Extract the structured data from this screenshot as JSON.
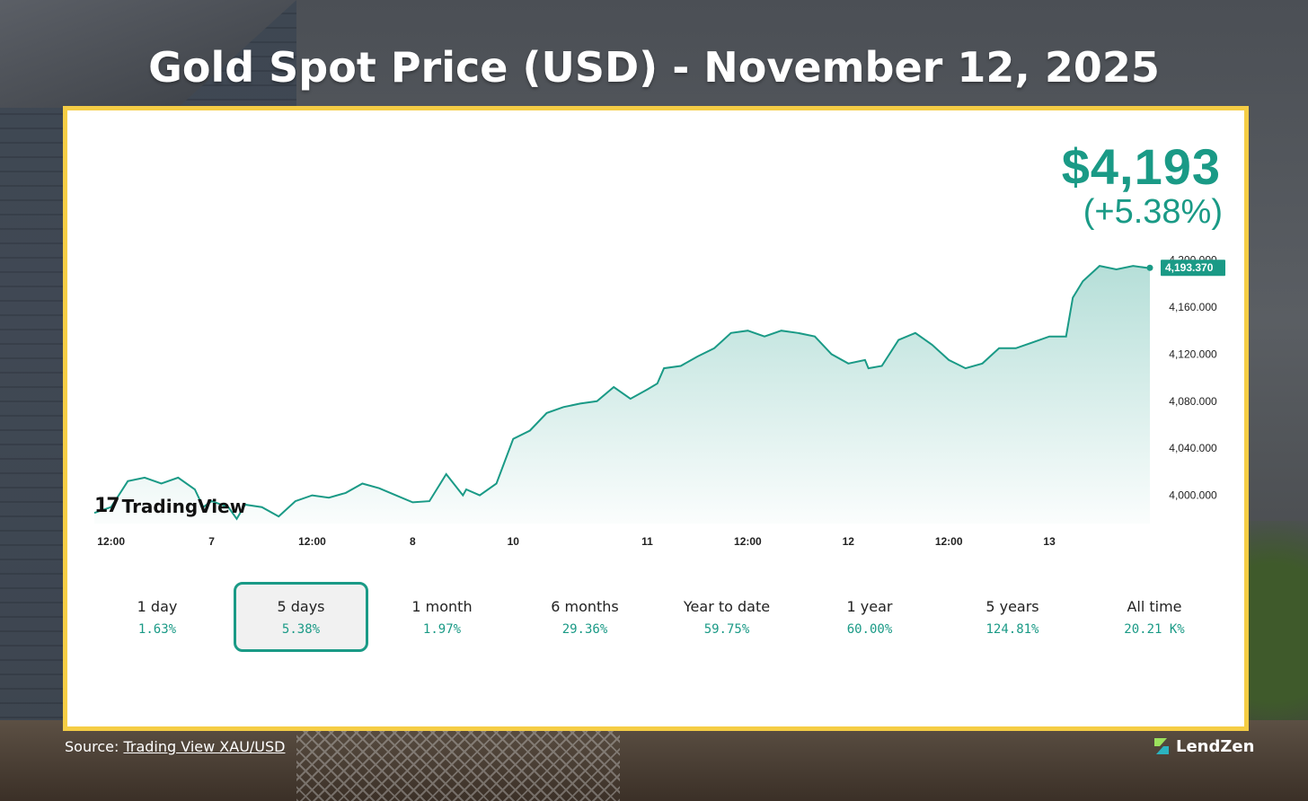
{
  "title": "Gold Spot Price (USD) - November 12, 2025",
  "headline": {
    "price": "$4,193",
    "change": "(+5.38%)"
  },
  "colors": {
    "accent": "#1a9a86",
    "frame": "#f5cd45",
    "title": "#ffffff"
  },
  "watermark": {
    "mark": "17",
    "text": "TradingView"
  },
  "periods": [
    {
      "label": "1 day",
      "value": "1.63%",
      "active": false
    },
    {
      "label": "5 days",
      "value": "5.38%",
      "active": true
    },
    {
      "label": "1 month",
      "value": "1.97%",
      "active": false
    },
    {
      "label": "6 months",
      "value": "29.36%",
      "active": false
    },
    {
      "label": "Year to date",
      "value": "59.75%",
      "active": false
    },
    {
      "label": "1 year",
      "value": "60.00%",
      "active": false
    },
    {
      "label": "5 years",
      "value": "124.81%",
      "active": false
    },
    {
      "label": "All time",
      "value": "20.21 K%",
      "active": false
    }
  ],
  "footer": {
    "source_prefix": "Source:",
    "source_link": "Trading View XAU/USD",
    "brand": "LendZen"
  },
  "chart_data": {
    "type": "area",
    "title": "",
    "xlabel": "",
    "ylabel": "",
    "ylim": [
      3976,
      4205
    ],
    "y_ticks": [
      4000,
      4040,
      4080,
      4120,
      4160,
      4200
    ],
    "y_tick_labels": [
      "4,000.000",
      "4,040.000",
      "4,080.000",
      "4,120.000",
      "4,160.000",
      "4,200.000"
    ],
    "last_value": 4193.37,
    "last_value_label": "4,193.370",
    "x_ticks": [
      {
        "label": "12:00",
        "x": 0.5
      },
      {
        "label": "7",
        "x": 3.5
      },
      {
        "label": "12:00",
        "x": 6.5
      },
      {
        "label": "8",
        "x": 9.5
      },
      {
        "label": "10",
        "x": 12.5
      },
      {
        "label": "11",
        "x": 16.5
      },
      {
        "label": "12:00",
        "x": 19.5
      },
      {
        "label": "12",
        "x": 22.5
      },
      {
        "label": "12:00",
        "x": 25.5
      },
      {
        "label": "13",
        "x": 28.5
      }
    ],
    "x": [
      0,
      0.5,
      1,
      1.5,
      2,
      2.5,
      3,
      3.25,
      3.5,
      4,
      4.25,
      4.5,
      5,
      5.5,
      6,
      6.5,
      7,
      7.5,
      8,
      8.5,
      9,
      9.5,
      10,
      10.5,
      11,
      11.1,
      11.5,
      12,
      12.5,
      13,
      13.5,
      14,
      14.5,
      15,
      15.5,
      16,
      16.5,
      16.8,
      17,
      17.5,
      18,
      18.5,
      19,
      19.5,
      20,
      20.5,
      21,
      21.5,
      22,
      22.5,
      23,
      23.1,
      23.5,
      24,
      24.5,
      25,
      25.5,
      26,
      26.5,
      27,
      27.5,
      28,
      28.5,
      29,
      29.2,
      29.5,
      30,
      30.5,
      31,
      31.5
    ],
    "values": [
      3985,
      3990,
      4012,
      4015,
      4010,
      4015,
      4005,
      3990,
      3995,
      3990,
      3980,
      3992,
      3990,
      3982,
      3995,
      4000,
      3998,
      4002,
      4010,
      4006,
      4000,
      3994,
      3995,
      4018,
      4000,
      4005,
      4000,
      4010,
      4048,
      4055,
      4070,
      4075,
      4078,
      4080,
      4092,
      4082,
      4090,
      4095,
      4108,
      4110,
      4118,
      4125,
      4138,
      4140,
      4135,
      4140,
      4138,
      4135,
      4120,
      4112,
      4115,
      4108,
      4110,
      4132,
      4138,
      4128,
      4115,
      4108,
      4112,
      4125,
      4125,
      4130,
      4135,
      4135,
      4168,
      4182,
      4195,
      4192,
      4195,
      4193
    ]
  }
}
